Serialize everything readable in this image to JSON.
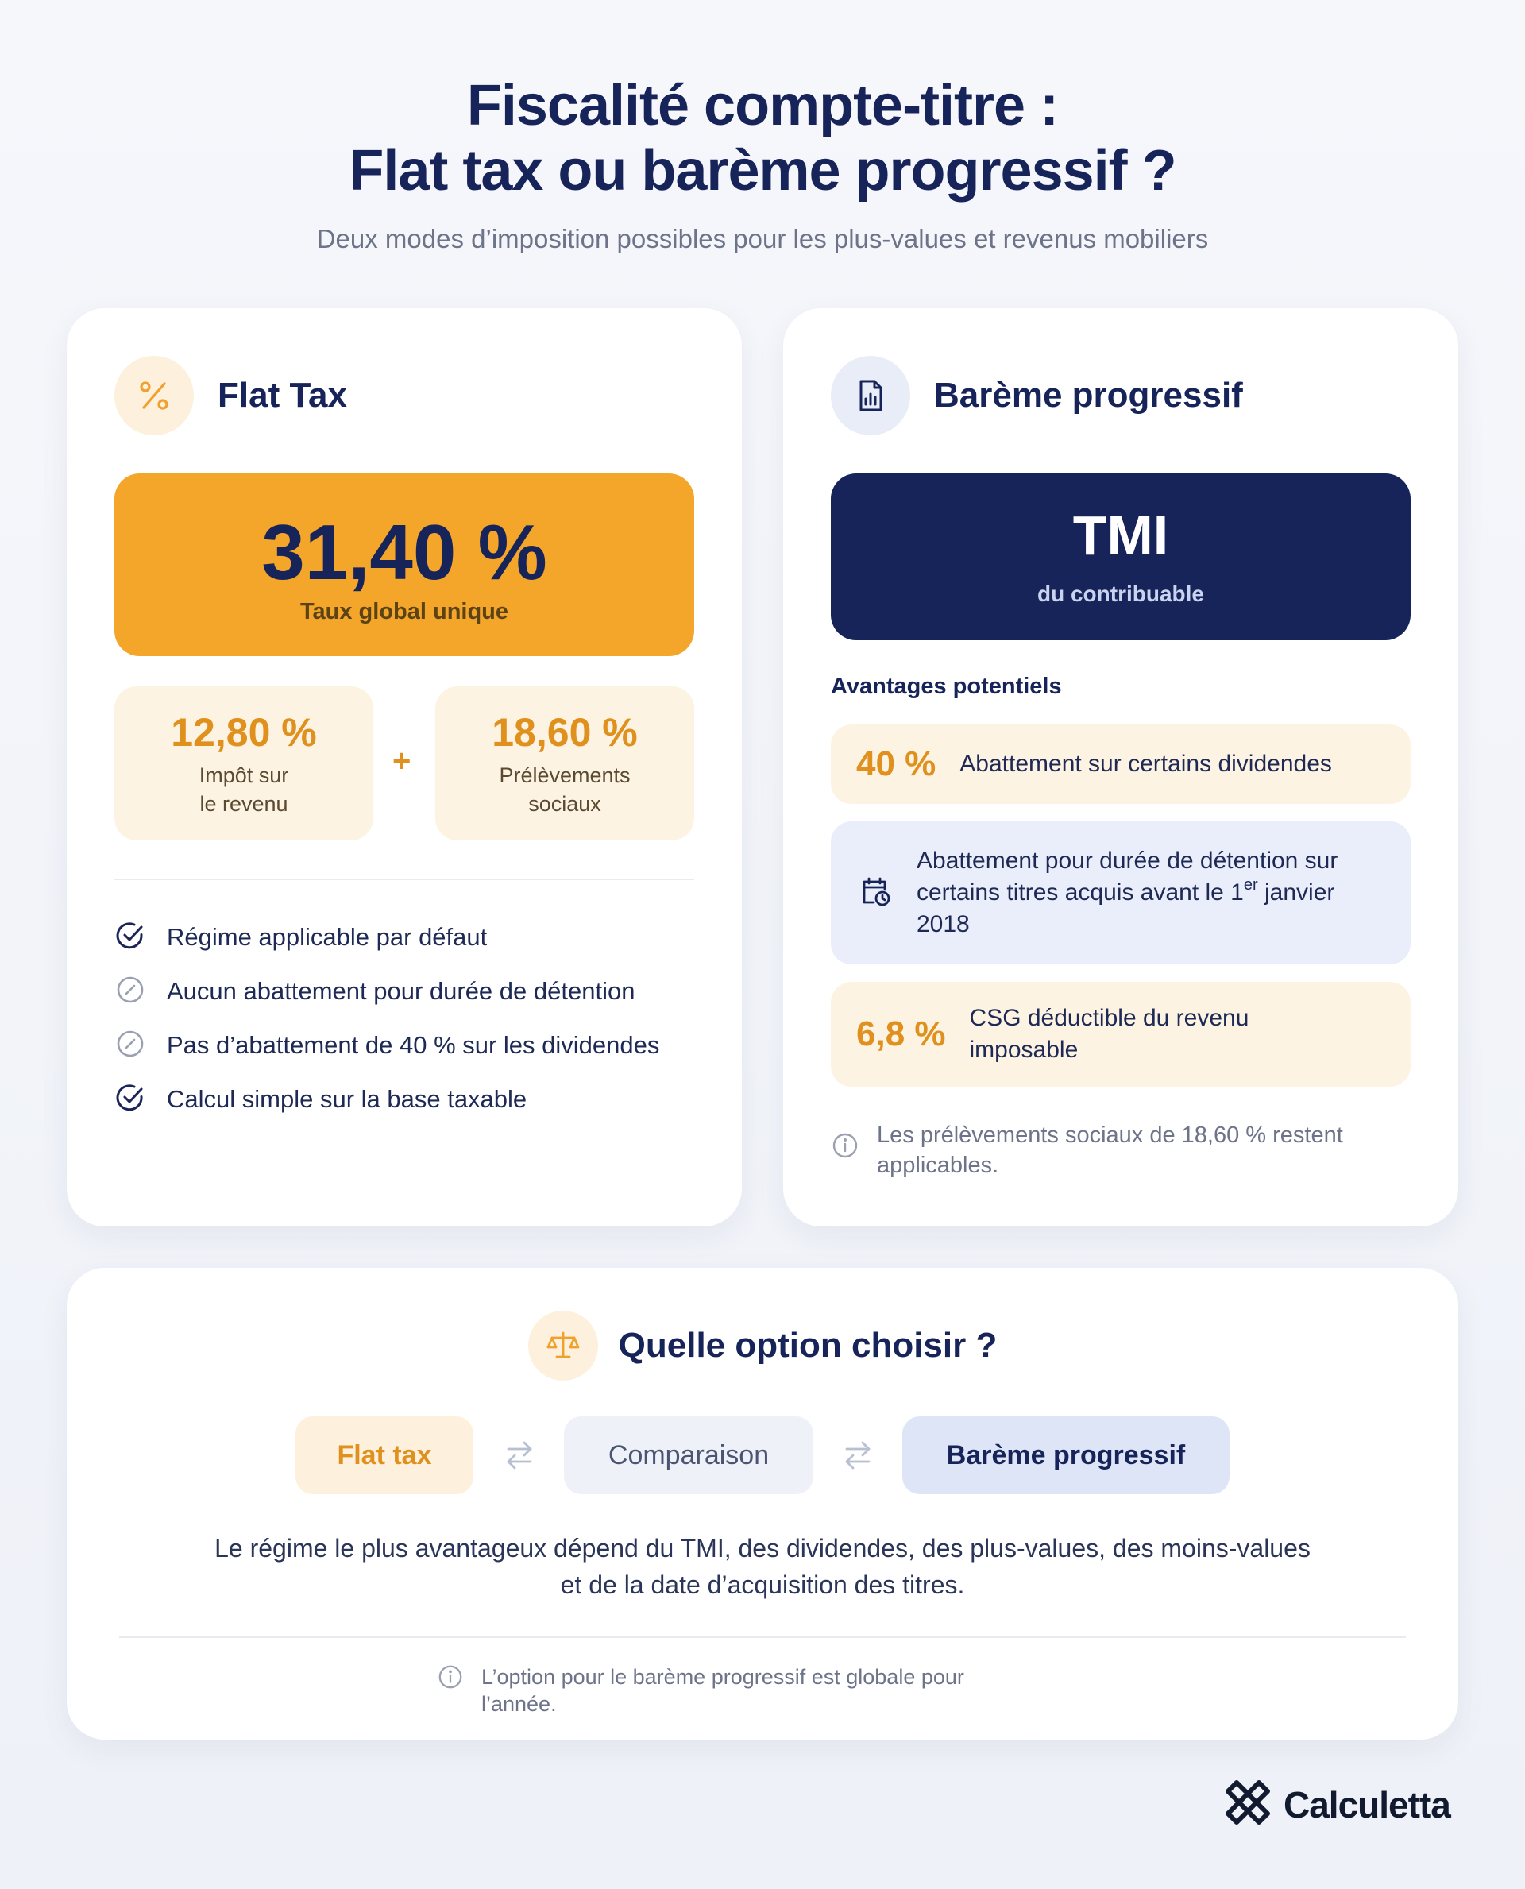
{
  "header": {
    "title_line1": "Fiscalité compte-titre :",
    "title_line2": "Flat tax ou barème progressif ?",
    "subtitle": "Deux modes d’imposition possibles pour les plus-values et revenus mobiliers"
  },
  "flat_tax": {
    "title": "Flat Tax",
    "icon": "percent-icon",
    "global_rate": "31,40 %",
    "global_label": "Taux global unique",
    "components": [
      {
        "value": "12,80 %",
        "label_line1": "Impôt sur",
        "label_line2": "le revenu"
      },
      {
        "value": "18,60 %",
        "label_line1": "Prélèvements",
        "label_line2": "sociaux"
      }
    ],
    "plus": "+",
    "items": [
      {
        "text": "Régime applicable par défaut",
        "icon": "check-circle-icon"
      },
      {
        "text": "Aucun abattement pour durée de détention",
        "icon": "slash-circle-icon"
      },
      {
        "text": "Pas d’abattement de 40 % sur les dividendes",
        "icon": "slash-circle-icon"
      },
      {
        "text": "Calcul simple sur la base taxable",
        "icon": "check-circle-icon"
      }
    ]
  },
  "bareme": {
    "title": "Barème progressif",
    "icon": "document-chart-icon",
    "tmi_value": "TMI",
    "tmi_label": "du contribuable",
    "advantages_heading": "Avantages potentiels",
    "advantages": [
      {
        "pct": "40 %",
        "text": "Abattement sur certains dividendes"
      },
      {
        "icon": "calendar-clock-icon",
        "text_before": "Abattement pour durée de détention sur certains titres acquis avant le 1",
        "sup": "er",
        "text_after": " janvier 2018"
      },
      {
        "pct": "6,8 %",
        "text": "CSG déductible du revenu imposable"
      }
    ],
    "note": "Les prélèvements sociaux de 18,60 % restent applicables."
  },
  "choice": {
    "title": "Quelle option choisir ?",
    "icon": "scale-icon",
    "pills": [
      "Flat tax",
      "Comparaison",
      "Barème progressif"
    ],
    "text": "Le régime le plus avantageux dépend du TMI, des dividendes, des plus-values, des moins-values et de la date d’acquisition des titres.",
    "note": "L’option pour le barème progressif est globale pour l’année."
  },
  "brand": {
    "name": "Calculetta"
  },
  "colors": {
    "accent_orange": "#f4a62a",
    "navy": "#17245a",
    "orange_text": "#e0901c"
  }
}
